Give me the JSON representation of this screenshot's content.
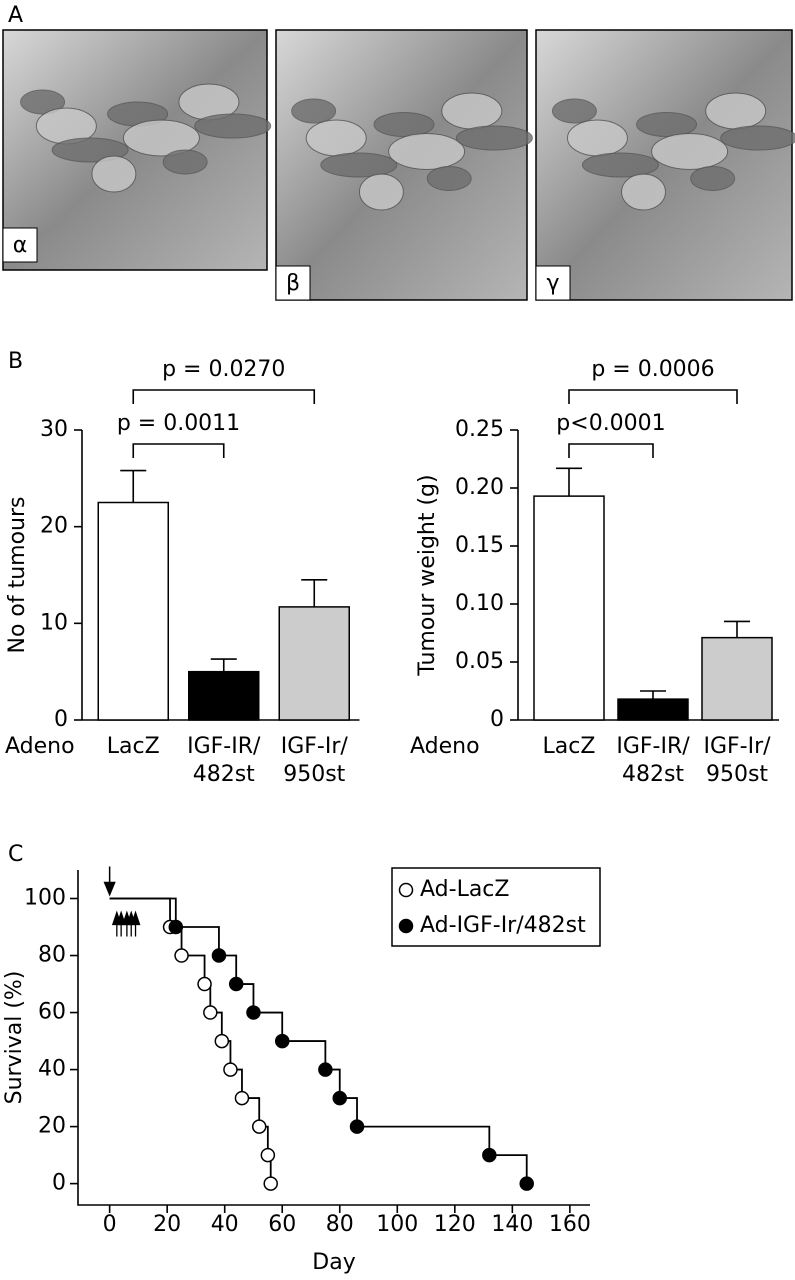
{
  "panel_labels": {
    "a": "A",
    "b": "B",
    "c": "C"
  },
  "photos": [
    {
      "label": "α"
    },
    {
      "label": "β"
    },
    {
      "label": "γ"
    }
  ],
  "chart_data": [
    {
      "type": "bar",
      "ylabel": "No of tumours",
      "xlabel": "Adeno",
      "categories": [
        "LacZ",
        "IGF-IR/\n482st",
        "IGF-Ir/\n950st"
      ],
      "values": [
        22.5,
        5,
        11.7
      ],
      "errors": [
        3.3,
        1.3,
        2.8
      ],
      "colors": [
        "#ffffff",
        "#000000",
        "#cccccc"
      ],
      "ylim": [
        0,
        30
      ],
      "yticks": [
        0,
        10,
        20,
        30
      ],
      "comparisons": [
        {
          "from": 0,
          "to": 2,
          "label": "p = 0.0270"
        },
        {
          "from": 0,
          "to": 1,
          "label": "p = 0.0011"
        }
      ]
    },
    {
      "type": "bar",
      "ylabel": "Tumour weight (g)",
      "xlabel": "Adeno",
      "categories": [
        "LacZ",
        "IGF-IR/\n482st",
        "IGF-Ir/\n950st"
      ],
      "values": [
        0.193,
        0.018,
        0.071
      ],
      "errors": [
        0.024,
        0.007,
        0.014
      ],
      "colors": [
        "#ffffff",
        "#000000",
        "#cccccc"
      ],
      "ylim": [
        0,
        0.25
      ],
      "yticks": [
        0,
        0.05,
        {
          "value": 0.1,
          "label": "0.10"
        },
        0.15,
        {
          "value": 0.2,
          "label": "0.20"
        },
        0.25
      ],
      "comparisons": [
        {
          "from": 0,
          "to": 2,
          "label": "p = 0.0006"
        },
        {
          "from": 0,
          "to": 1,
          "label": "p<0.0001"
        }
      ]
    },
    {
      "type": "step",
      "xlabel": "Day",
      "ylabel": "Survival (%)",
      "xlim": [
        -11,
        167
      ],
      "ylim": [
        -7.5,
        110
      ],
      "xticks": [
        0,
        20,
        40,
        60,
        80,
        100,
        120,
        140,
        160
      ],
      "yticks": [
        0,
        20,
        40,
        60,
        80,
        100
      ],
      "legend": "upper right",
      "series": [
        {
          "name": "Ad-LacZ",
          "color": "#000000",
          "marker_fill": "#ffffff",
          "x": [
            0,
            21,
            25,
            33,
            35,
            39,
            42,
            46,
            52,
            55,
            56
          ],
          "values": [
            100,
            90,
            80,
            70,
            60,
            50,
            40,
            30,
            20,
            10,
            0
          ]
        },
        {
          "name": "Ad-IGF-Ir/482st",
          "color": "#000000",
          "marker_fill": "#000000",
          "x": [
            0,
            23,
            38,
            44,
            50,
            60,
            75,
            80,
            86,
            132,
            145
          ],
          "values": [
            100,
            90,
            80,
            70,
            60,
            50,
            40,
            30,
            20,
            10,
            0
          ]
        }
      ],
      "arrows_down_x": [
        0
      ],
      "arrows_up_x": [
        2.5,
        4,
        6,
        7.5,
        9
      ]
    }
  ]
}
